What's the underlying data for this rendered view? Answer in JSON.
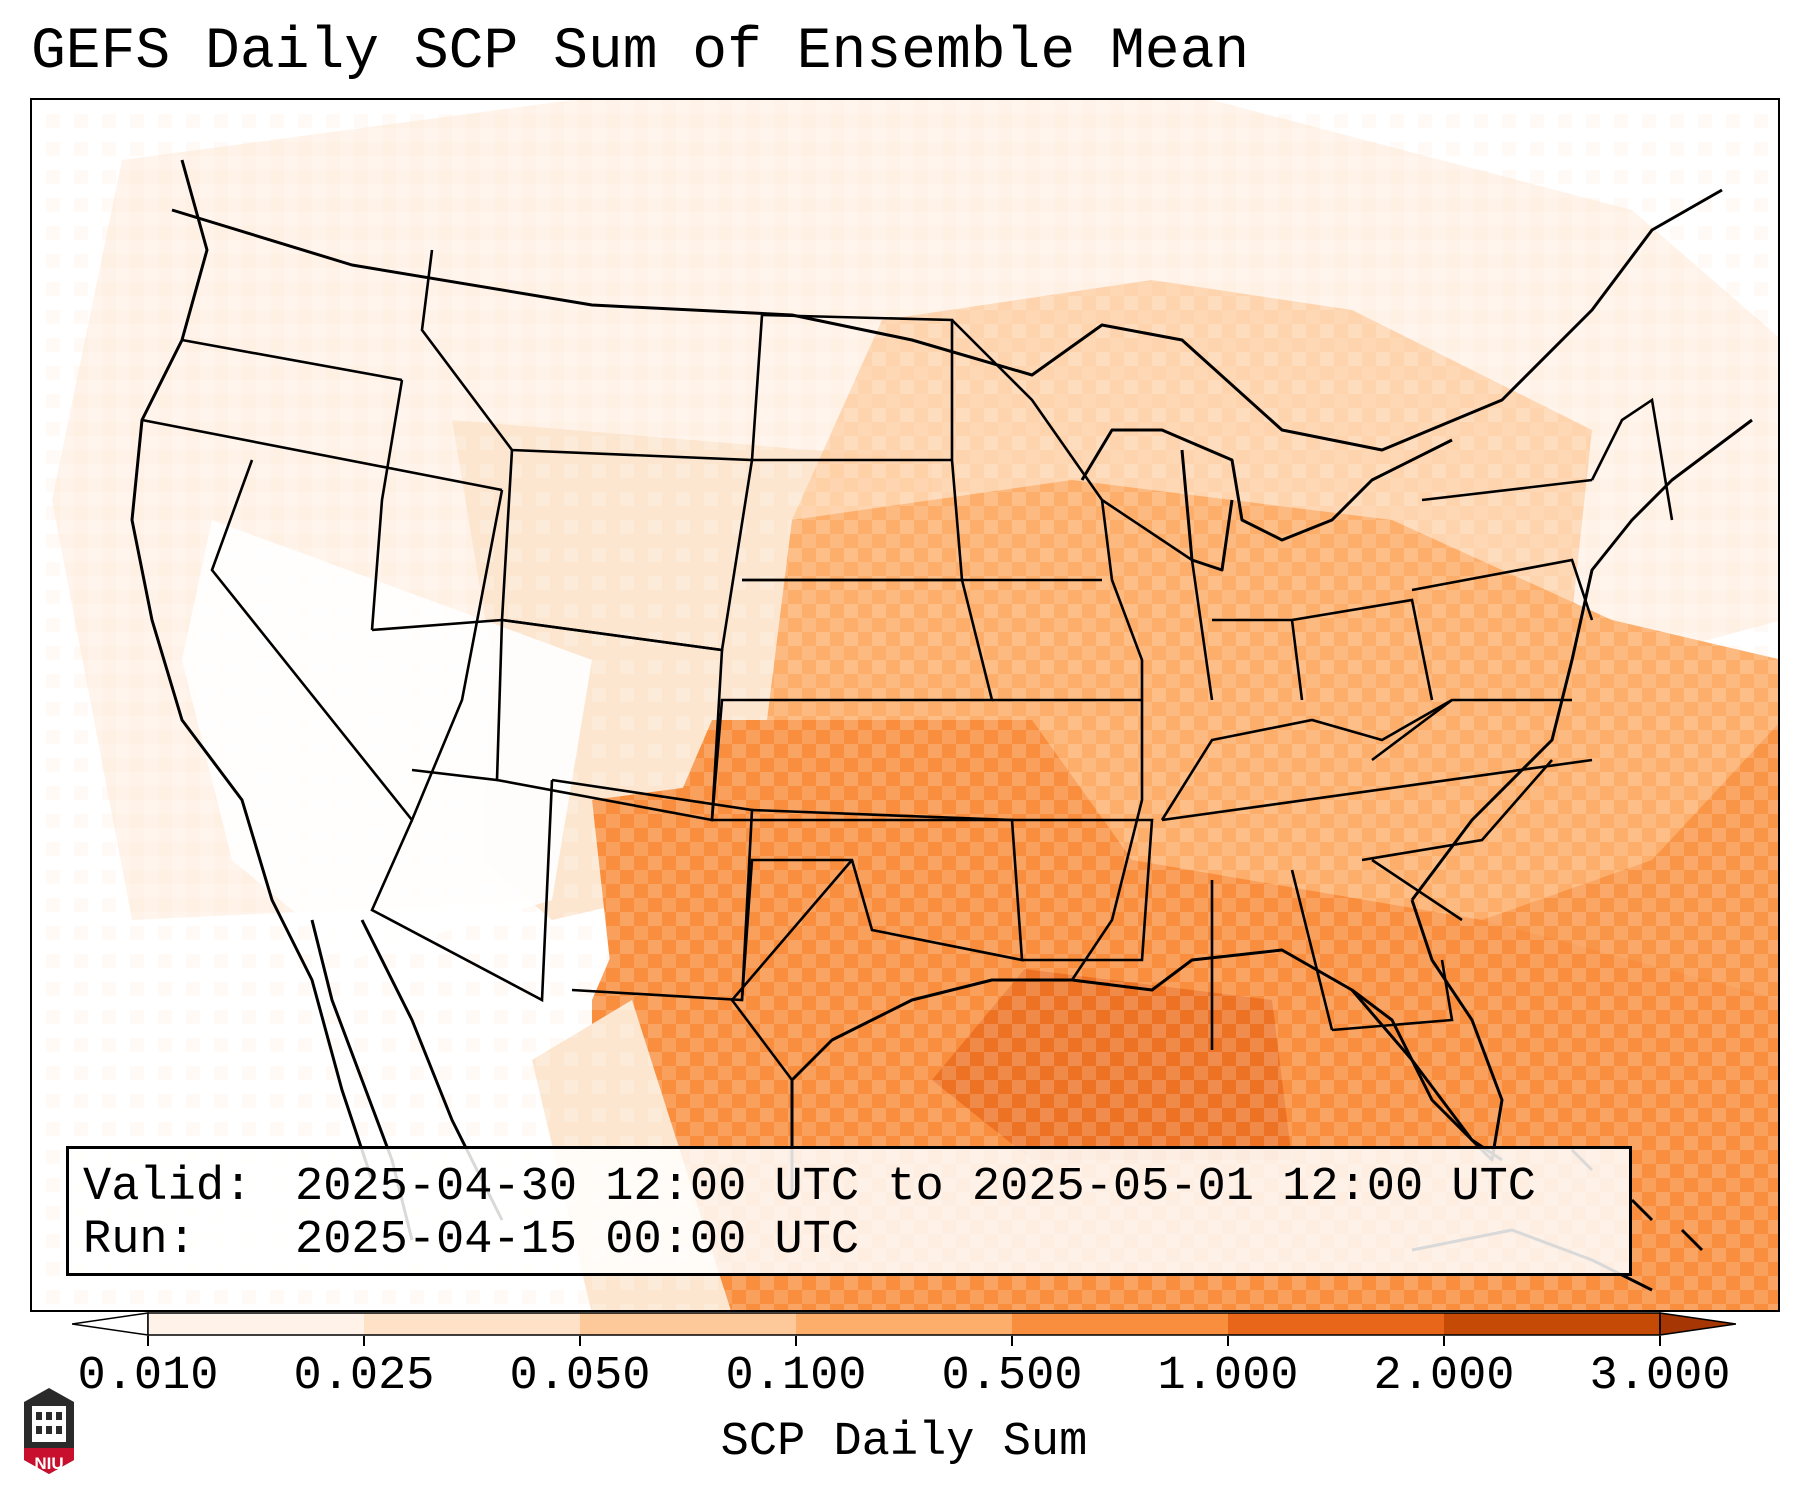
{
  "title": "GEFS Daily SCP Sum of Ensemble Mean",
  "info": {
    "valid_label": "Valid:",
    "valid_value": "2025-04-30 12:00 UTC to 2025-05-01 12:00 UTC",
    "run_label": "Run:",
    "run_value": "2025-04-15 00:00 UTC"
  },
  "colorbar": {
    "label": "SCP Daily Sum",
    "ticks": [
      "0.010",
      "0.025",
      "0.050",
      "0.100",
      "0.500",
      "1.000",
      "2.000",
      "3.000"
    ],
    "colors": [
      "#fff3e9",
      "#fee1c6",
      "#fdc99a",
      "#fdae6b",
      "#f88e3e",
      "#e8661a",
      "#c54a06"
    ],
    "under_color": "#ffffff",
    "over_color": "#a63603"
  },
  "logo": {
    "text": "NIU"
  }
}
